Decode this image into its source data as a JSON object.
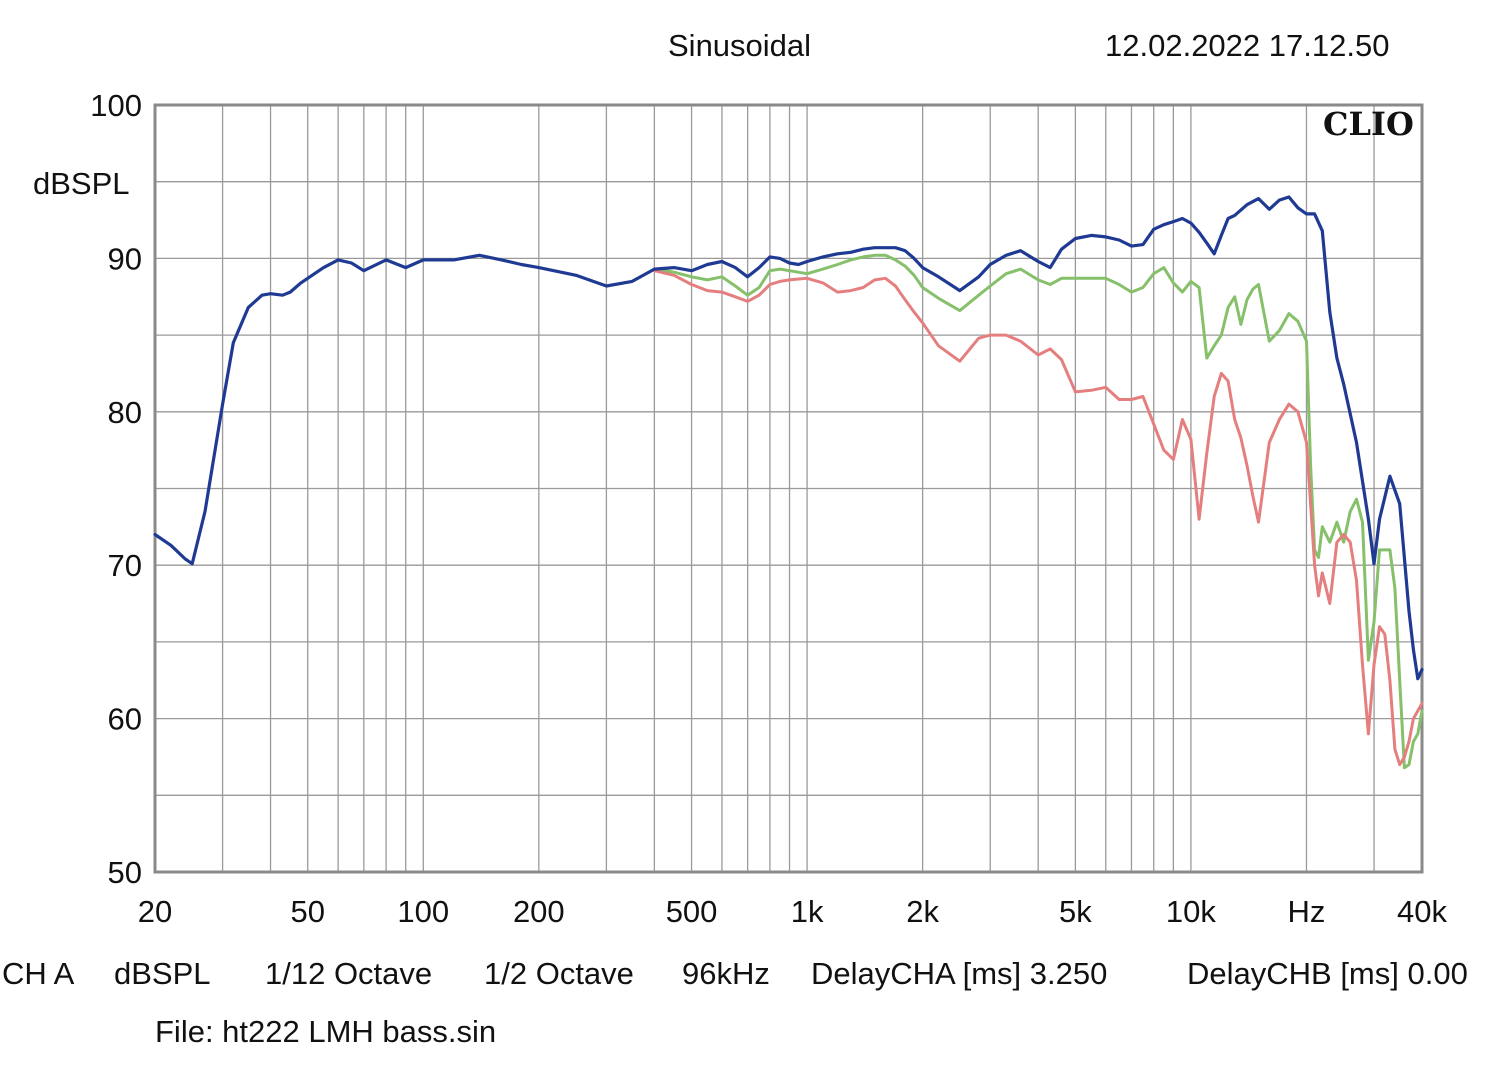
{
  "header": {
    "mode": "Sinusoidal",
    "timestamp": "12.02.2022 17.12.50",
    "brand": "CLIO"
  },
  "footer": {
    "info": [
      "CH A",
      "dBSPL",
      "1/12 Octave",
      "1/2 Octave",
      "96kHz",
      "DelayCHA [ms] 3.250",
      "DelayCHB [ms] 0.00"
    ],
    "file": "File: ht222 LMH bass.sin"
  },
  "colors": {
    "background": "#ffffff",
    "plot_border": "#8a8a8a",
    "grid": "#9a9a9a",
    "blue": "#1f3a93",
    "green": "#86c06a",
    "red": "#e57f7f"
  },
  "chart_data": {
    "type": "line",
    "xscale": "log",
    "xlim": [
      20,
      40000
    ],
    "ylim": [
      50,
      100
    ],
    "ylabel": "dBSPL",
    "grid": true,
    "legend": "none",
    "x_ticks": [
      {
        "value": 20,
        "label": "20"
      },
      {
        "value": 50,
        "label": "50"
      },
      {
        "value": 100,
        "label": "100"
      },
      {
        "value": 200,
        "label": "200"
      },
      {
        "value": 500,
        "label": "500"
      },
      {
        "value": 1000,
        "label": "1k"
      },
      {
        "value": 2000,
        "label": "2k"
      },
      {
        "value": 5000,
        "label": "5k"
      },
      {
        "value": 10000,
        "label": "10k"
      },
      {
        "value": 20000,
        "label": "Hz"
      },
      {
        "value": 40000,
        "label": "40k"
      }
    ],
    "y_ticks": [
      {
        "value": 100,
        "label": "100"
      },
      {
        "value": 90,
        "label": "90"
      },
      {
        "value": 80,
        "label": "80"
      },
      {
        "value": 70,
        "label": "70"
      },
      {
        "value": 60,
        "label": "60"
      },
      {
        "value": 50,
        "label": "50"
      }
    ],
    "series": [
      {
        "color": "#1f3a93",
        "x": [
          20,
          22,
          24,
          25,
          27,
          30,
          32,
          35,
          38,
          40,
          43,
          45,
          48,
          50,
          55,
          60,
          65,
          70,
          80,
          90,
          100,
          120,
          140,
          160,
          180,
          200,
          250,
          300,
          350,
          400,
          450,
          500,
          550,
          600,
          650,
          700,
          750,
          800,
          850,
          900,
          950,
          1000,
          1100,
          1200,
          1300,
          1400,
          1500,
          1600,
          1700,
          1800,
          1900,
          2000,
          2200,
          2500,
          2800,
          3000,
          3300,
          3600,
          4000,
          4300,
          4600,
          5000,
          5500,
          6000,
          6500,
          7000,
          7500,
          8000,
          8500,
          9000,
          9500,
          10000,
          10500,
          11000,
          11500,
          12000,
          12500,
          13000,
          14000,
          15000,
          16000,
          17000,
          18000,
          19000,
          20000,
          21000,
          22000,
          23000,
          24000,
          25000,
          27000,
          29000,
          30000,
          31000,
          33000,
          35000,
          37000,
          38000,
          39000,
          40000
        ],
        "y": [
          72.0,
          71.3,
          70.4,
          70.1,
          73.5,
          80.5,
          84.5,
          86.8,
          87.6,
          87.7,
          87.6,
          87.8,
          88.4,
          88.7,
          89.4,
          89.9,
          89.7,
          89.2,
          89.9,
          89.4,
          89.9,
          89.9,
          90.2,
          89.9,
          89.6,
          89.4,
          88.9,
          88.2,
          88.5,
          89.3,
          89.4,
          89.2,
          89.6,
          89.8,
          89.4,
          88.8,
          89.4,
          90.1,
          90.0,
          89.7,
          89.6,
          89.8,
          90.1,
          90.3,
          90.4,
          90.6,
          90.7,
          90.7,
          90.7,
          90.5,
          90.0,
          89.4,
          88.8,
          87.9,
          88.8,
          89.6,
          90.2,
          90.5,
          89.8,
          89.4,
          90.6,
          91.3,
          91.5,
          91.4,
          91.2,
          90.8,
          90.9,
          91.9,
          92.2,
          92.4,
          92.6,
          92.3,
          91.7,
          91.0,
          90.3,
          91.5,
          92.6,
          92.8,
          93.5,
          93.9,
          93.2,
          93.8,
          94.0,
          93.3,
          92.9,
          92.9,
          91.8,
          86.5,
          83.5,
          81.8,
          78.0,
          73.0,
          70.1,
          73.0,
          75.8,
          74.0,
          67.0,
          64.5,
          62.6,
          63.2
        ]
      },
      {
        "color": "#86c06a",
        "x": [
          400,
          450,
          500,
          550,
          600,
          650,
          700,
          750,
          800,
          850,
          900,
          1000,
          1100,
          1200,
          1300,
          1400,
          1500,
          1600,
          1700,
          1800,
          1900,
          2000,
          2200,
          2500,
          2800,
          3000,
          3300,
          3600,
          4000,
          4300,
          4600,
          5000,
          5500,
          6000,
          6500,
          7000,
          7500,
          8000,
          8500,
          9000,
          9500,
          10000,
          10500,
          11000,
          11500,
          12000,
          12500,
          13000,
          13500,
          14000,
          14500,
          15000,
          16000,
          17000,
          18000,
          19000,
          20000,
          20500,
          21000,
          21500,
          22000,
          23000,
          24000,
          25000,
          26000,
          27000,
          28000,
          29000,
          30000,
          31000,
          32000,
          33000,
          34000,
          35000,
          36000,
          37000,
          38000,
          39000,
          40000
        ],
        "y": [
          89.3,
          89.1,
          88.8,
          88.6,
          88.8,
          88.2,
          87.6,
          88.1,
          89.2,
          89.3,
          89.2,
          89.0,
          89.3,
          89.6,
          89.9,
          90.1,
          90.2,
          90.2,
          89.9,
          89.5,
          88.9,
          88.1,
          87.4,
          86.6,
          87.6,
          88.2,
          89.0,
          89.3,
          88.6,
          88.3,
          88.7,
          88.7,
          88.7,
          88.7,
          88.3,
          87.8,
          88.1,
          89.0,
          89.4,
          88.4,
          87.8,
          88.5,
          88.1,
          83.5,
          84.3,
          85.0,
          86.8,
          87.5,
          85.7,
          87.3,
          88.0,
          88.3,
          84.6,
          85.3,
          86.4,
          85.9,
          84.6,
          76.5,
          71.0,
          70.5,
          72.5,
          71.5,
          72.8,
          71.5,
          73.5,
          74.3,
          72.8,
          63.8,
          66.3,
          71.0,
          71.0,
          71.0,
          68.5,
          62.5,
          56.8,
          57.0,
          58.5,
          59.0,
          60.5
        ]
      },
      {
        "color": "#e57f7f",
        "x": [
          400,
          450,
          500,
          550,
          600,
          650,
          700,
          750,
          800,
          850,
          900,
          1000,
          1100,
          1200,
          1300,
          1400,
          1500,
          1600,
          1700,
          1800,
          1900,
          2000,
          2200,
          2500,
          2800,
          3000,
          3300,
          3600,
          4000,
          4300,
          4600,
          5000,
          5500,
          6000,
          6500,
          7000,
          7500,
          8000,
          8500,
          9000,
          9500,
          10000,
          10500,
          11000,
          11500,
          12000,
          12500,
          13000,
          13500,
          14000,
          14500,
          15000,
          16000,
          17000,
          18000,
          19000,
          20000,
          20500,
          21000,
          21500,
          22000,
          23000,
          24000,
          25000,
          26000,
          27000,
          28000,
          29000,
          30000,
          31000,
          32000,
          33000,
          34000,
          35000,
          36000,
          37000,
          38000,
          39000,
          40000
        ],
        "y": [
          89.2,
          88.9,
          88.3,
          87.9,
          87.8,
          87.5,
          87.2,
          87.6,
          88.3,
          88.5,
          88.6,
          88.7,
          88.4,
          87.8,
          87.9,
          88.1,
          88.6,
          88.7,
          88.2,
          87.3,
          86.5,
          85.8,
          84.3,
          83.3,
          84.8,
          85.0,
          85.0,
          84.6,
          83.7,
          84.1,
          83.4,
          81.3,
          81.4,
          81.6,
          80.8,
          80.8,
          81.0,
          79.2,
          77.5,
          76.9,
          79.5,
          78.2,
          73.0,
          77.3,
          81.0,
          82.5,
          82.0,
          79.5,
          78.3,
          76.5,
          74.5,
          72.8,
          78.0,
          79.5,
          80.5,
          80.0,
          78.0,
          74.0,
          70.0,
          68.0,
          69.5,
          67.5,
          71.5,
          72.0,
          71.5,
          69.0,
          63.5,
          59.0,
          63.5,
          66.0,
          65.5,
          62.5,
          58.0,
          57.0,
          57.5,
          58.5,
          60.0,
          60.5,
          61.0
        ]
      }
    ]
  }
}
